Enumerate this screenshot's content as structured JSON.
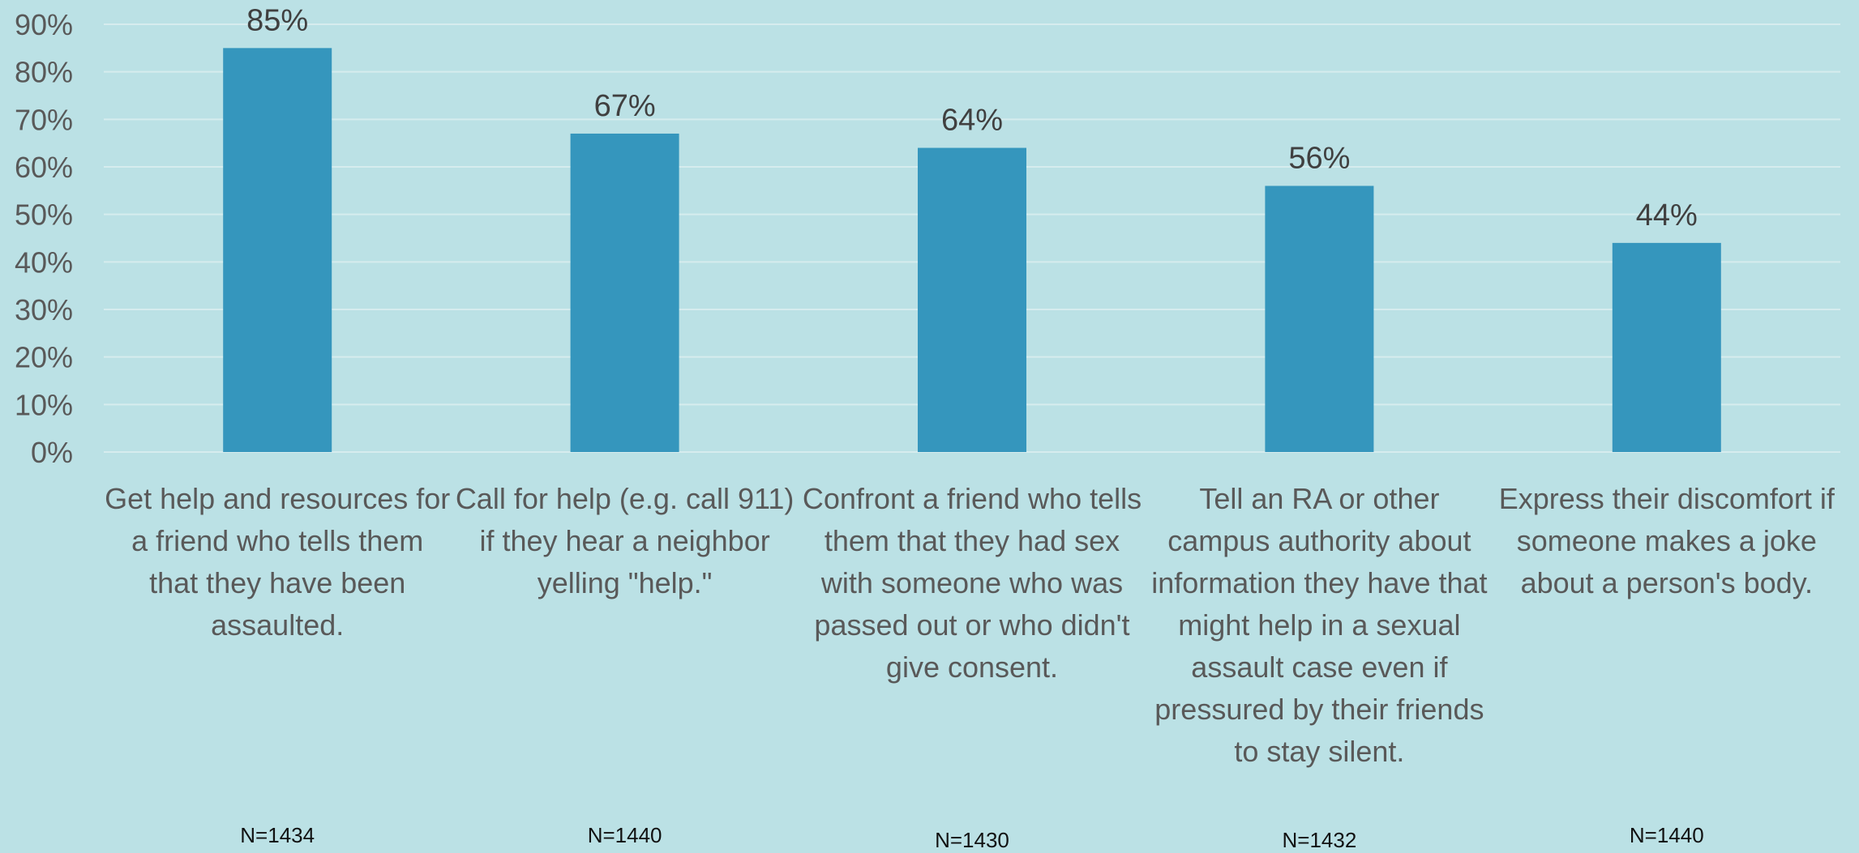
{
  "chart_data": {
    "type": "bar",
    "categories": [
      "Get help and resources for a friend who tells them that they have been assaulted.",
      "Call for help (e.g. call 911) if they hear a neighbor yelling \"help.\"",
      "Confront a friend who tells them that they had sex with someone who was passed out or who didn't give consent.",
      "Tell an RA or other campus authority about information they have that might help in a sexual assault case even if pressured by their friends to stay silent.",
      "Express their discomfort if someone makes a joke about a person's body."
    ],
    "values": [
      85,
      67,
      64,
      56,
      44
    ],
    "data_labels": [
      "85%",
      "67%",
      "64%",
      "56%",
      "44%"
    ],
    "sample_sizes": [
      "N=1434",
      "N=1440",
      "N=1430",
      "N=1432",
      "N=1440"
    ],
    "y_ticks": [
      0,
      10,
      20,
      30,
      40,
      50,
      60,
      70,
      80,
      90
    ],
    "y_tick_labels": [
      "0%",
      "10%",
      "20%",
      "30%",
      "40%",
      "50%",
      "60%",
      "70%",
      "80%",
      "90%"
    ],
    "ylim": [
      0,
      90
    ],
    "grid": true,
    "title": "",
    "xlabel": "",
    "ylabel": "",
    "bar_color": "#3596bd",
    "background_color": "#bbe1e5"
  }
}
